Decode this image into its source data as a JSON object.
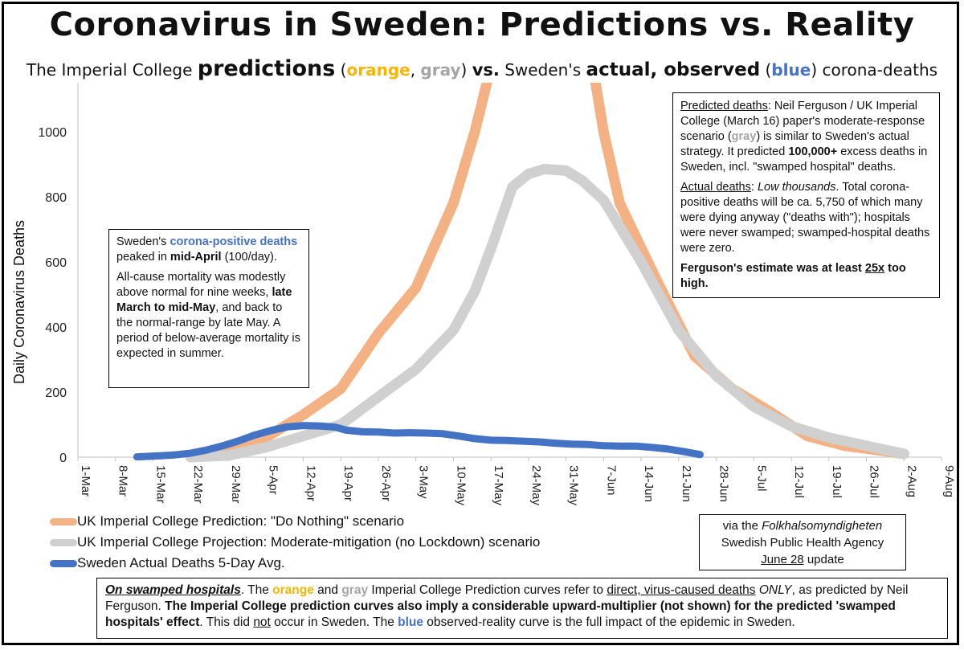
{
  "title": "Coronavirus in Sweden: Predictions vs. Reality",
  "subtitle": {
    "part1": "The Imperial College ",
    "predictions": "predictions",
    "paren_open": " (",
    "orange_word": "orange",
    "comma": ", ",
    "gray_word": "gray",
    "paren_close": ")  ",
    "vs": "vs.",
    "part2": " Sweden's ",
    "actual": "actual, observed",
    "paren_open2": " (",
    "blue_word": "blue",
    "paren_close2": ") corona-deaths"
  },
  "colors": {
    "orange_line": "#F4B183",
    "gray_line": "#D0D0D0",
    "blue_line": "#4472C4",
    "orange_text": "#F7B500",
    "gray_text": "#A5A5A5",
    "blue_text": "#4472C4"
  },
  "chart_data": {
    "type": "line",
    "ylabel": "Daily  Coronavirus Deaths",
    "xlabel": "",
    "ylim": [
      0,
      1150
    ],
    "yticks": [
      0,
      200,
      400,
      600,
      800,
      1000
    ],
    "x_tick_labels": [
      "1-Mar",
      "8-Mar",
      "15-Mar",
      "22-Mar",
      "29-Mar",
      "5-Apr",
      "12-Apr",
      "19-Apr",
      "26-Apr",
      "3-May",
      "10-May",
      "17-May",
      "24-May",
      "31-May",
      "7-Jun",
      "14-Jun",
      "21-Jun",
      "28-Jun",
      "5-Jul",
      "12-Jul",
      "19-Jul",
      "26-Jul",
      "2-Aug",
      "9-Aug"
    ],
    "x_unit": "days since 1-Mar",
    "grid": false,
    "legend_position": "bottom-left",
    "series": [
      {
        "name": "UK Imperial College Prediction: \"Do Nothing\" scenario",
        "color": "#F4B183",
        "points": [
          [
            21,
            0
          ],
          [
            28,
            15
          ],
          [
            35,
            60
          ],
          [
            42,
            130
          ],
          [
            49,
            210
          ],
          [
            56,
            380
          ],
          [
            63,
            520
          ],
          [
            70,
            780
          ],
          [
            74,
            1000
          ],
          [
            77,
            1200
          ],
          [
            96,
            1200
          ],
          [
            98,
            1000
          ],
          [
            101,
            780
          ],
          [
            108,
            540
          ],
          [
            115,
            310
          ],
          [
            122,
            210
          ],
          [
            129,
            140
          ],
          [
            136,
            65
          ],
          [
            143,
            35
          ],
          [
            150,
            20
          ],
          [
            154,
            10
          ]
        ]
      },
      {
        "name": "UK Imperial College Projection: Moderate-mitigation (no Lockdown) scenario",
        "color": "#D0D0D0",
        "points": [
          [
            21,
            0
          ],
          [
            28,
            5
          ],
          [
            35,
            30
          ],
          [
            42,
            65
          ],
          [
            49,
            100
          ],
          [
            56,
            185
          ],
          [
            63,
            270
          ],
          [
            70,
            390
          ],
          [
            74,
            510
          ],
          [
            77,
            640
          ],
          [
            81,
            830
          ],
          [
            84,
            870
          ],
          [
            87,
            885
          ],
          [
            91,
            880
          ],
          [
            94,
            850
          ],
          [
            98,
            790
          ],
          [
            105,
            600
          ],
          [
            112,
            390
          ],
          [
            119,
            250
          ],
          [
            126,
            155
          ],
          [
            133,
            95
          ],
          [
            140,
            60
          ],
          [
            147,
            35
          ],
          [
            154,
            10
          ]
        ]
      },
      {
        "name": "Sweden Actual Deaths 5-Day Avg.",
        "color": "#4472C4",
        "points": [
          [
            11,
            1
          ],
          [
            15,
            4
          ],
          [
            18,
            7
          ],
          [
            21,
            12
          ],
          [
            24,
            22
          ],
          [
            27,
            35
          ],
          [
            30,
            50
          ],
          [
            33,
            68
          ],
          [
            36,
            82
          ],
          [
            39,
            93
          ],
          [
            42,
            97
          ],
          [
            45,
            96
          ],
          [
            48,
            92
          ],
          [
            50,
            83
          ],
          [
            53,
            78
          ],
          [
            56,
            77
          ],
          [
            59,
            74
          ],
          [
            62,
            75
          ],
          [
            65,
            74
          ],
          [
            68,
            72
          ],
          [
            71,
            65
          ],
          [
            74,
            57
          ],
          [
            77,
            52
          ],
          [
            80,
            51
          ],
          [
            83,
            49
          ],
          [
            86,
            47
          ],
          [
            89,
            43
          ],
          [
            92,
            40
          ],
          [
            95,
            39
          ],
          [
            98,
            35
          ],
          [
            101,
            34
          ],
          [
            104,
            34
          ],
          [
            107,
            30
          ],
          [
            110,
            25
          ],
          [
            113,
            17
          ],
          [
            116,
            8
          ]
        ]
      }
    ]
  },
  "note_top_right": {
    "p1_label": "Predicted deaths",
    "p1_a": ": Neil Ferguson / UK Imperial College (March 16) paper's moderate-response scenario (",
    "p1_gray": "gray",
    "p1_b": ") is similar to Sweden's actual strategy. It predicted ",
    "p1_bold": "100,000+",
    "p1_c": " excess deaths in Sweden, incl. \"swamped hospital\" deaths.",
    "p2_label": "Actual deaths",
    "p2_a": ": ",
    "p2_italic": "Low thousands",
    "p2_b": ". Total corona-positive deaths will be ca. 5,750 of which many were dying anyway (\"deaths with\"); hospitals were never swamped; swamped-hospital deaths were zero.",
    "p3_a": "Ferguson's estimate was at least ",
    "p3_u": "25x",
    "p3_b": " too high."
  },
  "note_left": {
    "p1_a": "Sweden's ",
    "p1_blue": "corona-positive deaths",
    "p1_b": " peaked in ",
    "p1_bold": "mid-April",
    "p1_c": " (100/day).",
    "p2_a": "All-cause mortality was modestly above normal for nine weeks, ",
    "p2_bold": "late March to mid-May",
    "p2_b": ", and back to the normal-range by late May. A period of below-average mortality is expected  in summer."
  },
  "legend": [
    {
      "label": "UK Imperial College Prediction: \"Do Nothing\" scenario"
    },
    {
      "label": "UK Imperial College Projection: Moderate-mitigation (no Lockdown) scenario"
    },
    {
      "label": "Sweden Actual Deaths 5-Day Avg."
    }
  ],
  "source": {
    "line1_a": "via the ",
    "line1_italic": "Folkhalsomyndigheten",
    "line2": "Swedish Public Health Agency",
    "line3_u": "June 28",
    "line3_b": " update"
  },
  "bottom_note": {
    "label": "On swamped hospitals",
    "a": ". The ",
    "orange": "orange",
    "b": " and ",
    "gray": "gray",
    "c": " Imperial College Prediction curves refer to ",
    "u1": "direct, virus-caused deaths",
    "c2": " ",
    "i1": "ONLY",
    "d": ", as predicted by Neil Ferguson. ",
    "bold": "The Imperial College prediction curves also imply a considerable upward-multiplier (not shown) for the predicted 'swamped hospitals' effect",
    "e": ". This did ",
    "u2": "not",
    "f": " occur in Sweden. The ",
    "blue": "blue",
    "g": " observed-reality curve is the full impact of the epidemic in Sweden."
  }
}
